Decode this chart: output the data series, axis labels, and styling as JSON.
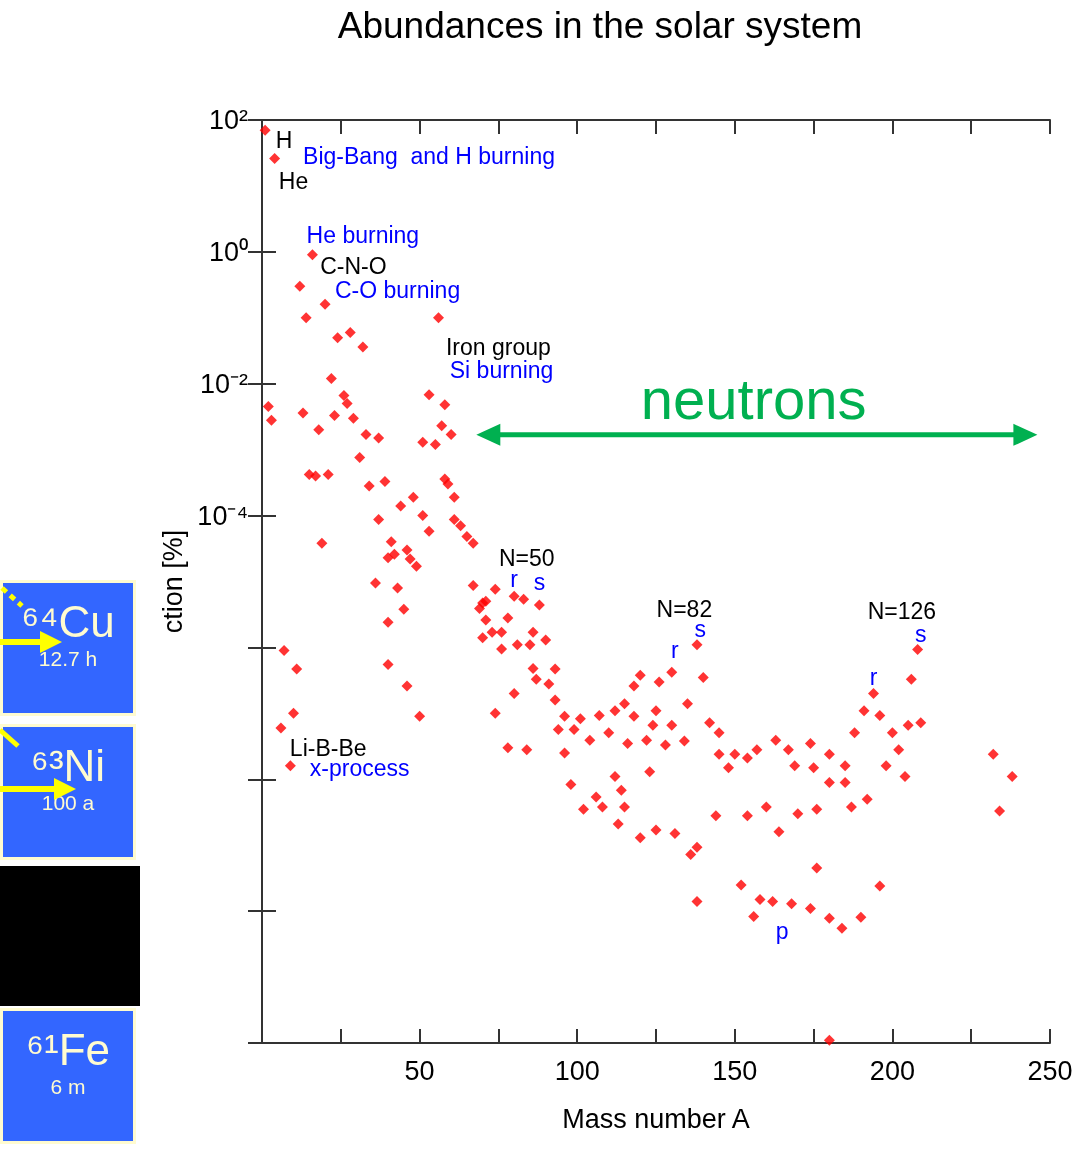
{
  "chart_data": {
    "type": "scatter",
    "title": "Abundances in the solar system",
    "xlabel": "Mass number A",
    "ylabel": "ction [%]",
    "log": "y",
    "marker": "diamond",
    "grid": false,
    "xlim": [
      0,
      250
    ],
    "xticks": [
      {
        "value": 0,
        "label": null
      },
      {
        "value": 25,
        "label": null
      },
      50,
      {
        "value": 75,
        "label": null
      },
      100,
      {
        "value": 125,
        "label": null
      },
      150,
      {
        "value": 175,
        "label": null
      },
      200,
      {
        "value": 225,
        "label": null
      },
      250
    ],
    "ylim": [
      1e-12,
      100
    ],
    "yticks": [
      {
        "value": 100,
        "label": "10²"
      },
      {
        "value": 1,
        "label": "10⁰"
      },
      {
        "value": 0.01,
        "label": "10⁻²"
      },
      {
        "value": 0.0001,
        "label": "10⁻⁴"
      },
      {
        "value": 1e-06,
        "label": null
      },
      {
        "value": 1e-08,
        "label": null
      },
      {
        "value": 1e-10,
        "label": null
      },
      {
        "value": 1e-12,
        "label": null
      }
    ],
    "series": [
      {
        "color": "#ff0000",
        "x": [
          1,
          4,
          16,
          12,
          20,
          14,
          24,
          28,
          32,
          56,
          22,
          2,
          3,
          13,
          18,
          23,
          26,
          27,
          29,
          33,
          37,
          53,
          58,
          57,
          60,
          51,
          55,
          31,
          15,
          17,
          21,
          34,
          39,
          48,
          44,
          58,
          59,
          61,
          19,
          37,
          41,
          51,
          53,
          61,
          63,
          65,
          67,
          42,
          46,
          47,
          49,
          40,
          36,
          43,
          67,
          45,
          40,
          69,
          71,
          74,
          40,
          46,
          50,
          7,
          11,
          10,
          6,
          9,
          80,
          83,
          88,
          70,
          71,
          78,
          73,
          70,
          76,
          76,
          81,
          85,
          86,
          90,
          86,
          87,
          93,
          91,
          80,
          74,
          93,
          96,
          94,
          78,
          84,
          96,
          98,
          138,
          130,
          126,
          120,
          118,
          140,
          135,
          115,
          112,
          107,
          101,
          99,
          110,
          118,
          124,
          122,
          116,
          104,
          128,
          134,
          130,
          125,
          142,
          145,
          145,
          148,
          150,
          154,
          157,
          163,
          167,
          169,
          174,
          175,
          180,
          180,
          185,
          185,
          188,
          191,
          194,
          196,
          200,
          202,
          205,
          209,
          206,
          208,
          198,
          204,
          192,
          187,
          232,
          238,
          234,
          102,
          106,
          108,
          112,
          114,
          115,
          113,
          120,
          125,
          131,
          136,
          138,
          123,
          144,
          154,
          160,
          164,
          170,
          176,
          176,
          138,
          152,
          156,
          158,
          162,
          168,
          174,
          180,
          184,
          190,
          196,
          180
        ],
        "values": [
          70,
          26,
          0.9,
          0.3,
          0.16,
          0.1,
          0.05,
          0.06,
          0.036,
          0.1,
          0.012,
          0.0045,
          0.0028,
          0.0036,
          0.002,
          0.0033,
          0.0066,
          0.005,
          0.003,
          0.0017,
          0.0015,
          0.0068,
          0.0048,
          0.0023,
          0.0017,
          0.0013,
          0.0012,
          0.00076,
          0.00042,
          0.0004,
          0.00042,
          0.00028,
          0.00033,
          0.00019,
          0.00014,
          0.00036,
          0.0003,
          0.00019,
          3.8e-05,
          8.7e-05,
          4e-05,
          0.0001,
          5.8e-05,
          8.7e-05,
          7e-05,
          4.8e-05,
          3.8e-05,
          2.6e-05,
          3e-05,
          2.2e-05,
          1.7e-05,
          2.3e-05,
          9.5e-06,
          8e-06,
          8.7e-06,
          3.8e-06,
          2.4e-06,
          3.9e-06,
          5e-06,
          7.6e-06,
          5.5e-07,
          2.6e-07,
          9e-08,
          9e-07,
          4.7e-07,
          1e-07,
          6e-08,
          1.6e-08,
          6e-06,
          5.4e-06,
          4.4e-06,
          4.7e-06,
          2.6e-06,
          2.8e-06,
          1.7e-06,
          1.4e-06,
          1.7e-06,
          9.5e-07,
          1.1e-06,
          1.1e-06,
          1.7e-06,
          1.3e-06,
          4.8e-07,
          3.3e-07,
          4.7e-07,
          2.8e-07,
          2e-07,
          1e-07,
          1.6e-07,
          9e-08,
          5.7e-08,
          3e-08,
          2.8e-08,
          2.5e-08,
          8.3e-09,
          1.1e-06,
          4.2e-07,
          3e-07,
          3.8e-07,
          2.6e-07,
          3.5e-07,
          1.4e-07,
          1.4e-07,
          1.1e-07,
          9.3e-08,
          8.3e-08,
          5.7e-08,
          5.1e-08,
          9e-08,
          6.6e-08,
          3.9e-08,
          3.5e-08,
          3.9e-08,
          3.3e-08,
          3.8e-08,
          6.6e-08,
          1.1e-07,
          7.2e-08,
          5.1e-08,
          2.4e-08,
          1.5e-08,
          2.4e-08,
          2.1e-08,
          2.8e-08,
          3.9e-08,
          2.8e-08,
          1.6e-08,
          3.5e-08,
          1.5e-08,
          2.4e-08,
          8.9e-09,
          1.6e-08,
          8.9e-09,
          5.1e-08,
          1.1e-07,
          2e-07,
          9.3e-08,
          5.1e-08,
          2.8e-08,
          6.6e-08,
          7.2e-08,
          3.3e-07,
          9.3e-07,
          1.6e-08,
          1.1e-08,
          5e-09,
          3.8e-09,
          2.4e-08,
          1.1e-08,
          3.3e-09,
          3.5e-09,
          5.4e-09,
          3.8e-09,
          1.1e-08,
          6.8e-09,
          3.8e-09,
          2.1e-09,
          1.3e-09,
          1.7e-09,
          1.5e-09,
          7.2e-10,
          9.3e-10,
          1.3e-08,
          2.8e-09,
          2.8e-09,
          3.8e-09,
          1.6e-09,
          3e-09,
          3.5e-09,
          4.5e-10,
          1.4e-10,
          2.5e-10,
          8.3e-11,
          1.5e-10,
          1.4e-10,
          1.3e-10,
          1.1e-10,
          7.8e-11,
          5.5e-11,
          8.1e-11,
          2.4e-10,
          1.1e-12
        ]
      }
    ],
    "annotations": [
      "H",
      "He",
      "Big-Bang  and H burning",
      "He burning",
      "C-N-O",
      "C-O burning",
      "Iron group",
      "Si burning",
      "Li-B-Be",
      "x-process",
      "N=50",
      "r",
      "s",
      "N=82",
      "r",
      "s",
      "N=126",
      "r",
      "s",
      "p",
      "neutrons",
      "⁶⁴Cu",
      "12.7 h",
      "⁶³Ni",
      "100 a",
      "⁶¹Fe",
      "6 m"
    ]
  }
}
